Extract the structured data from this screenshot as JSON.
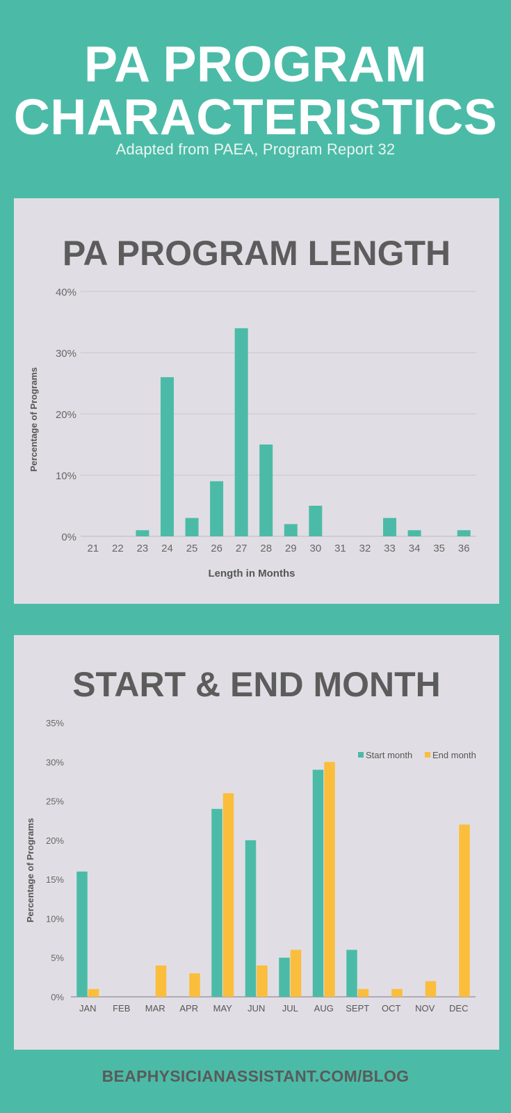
{
  "header": {
    "title_line1": "PA PROGRAM",
    "title_line2": "CHARACTERISTICS",
    "subtitle": "Adapted from PAEA, Program Report 32"
  },
  "footer": {
    "text": "BEAPHYSICIANASSISTANT.COM/BLOG"
  },
  "colors": {
    "teal": "#4bbba7",
    "orange": "#fbbd3c",
    "panel": "#e0dee4"
  },
  "chart_data": [
    {
      "type": "bar",
      "title": "PA PROGRAM LENGTH",
      "xlabel": "Length in Months",
      "ylabel": "Percentage of Programs",
      "categories": [
        "21",
        "22",
        "23",
        "24",
        "25",
        "26",
        "27",
        "28",
        "29",
        "30",
        "31",
        "32",
        "33",
        "34",
        "35",
        "36"
      ],
      "values": [
        0,
        0,
        1,
        26,
        3,
        9,
        34,
        15,
        2,
        5,
        0,
        0,
        3,
        1,
        0,
        1
      ],
      "ylim": [
        0,
        40
      ],
      "yticks": [
        "0%",
        "10%",
        "20%",
        "30%",
        "40%"
      ],
      "grid": true
    },
    {
      "type": "bar",
      "title": "START & END MONTH",
      "xlabel": "",
      "ylabel": "Percentage of Programs",
      "categories": [
        "JAN",
        "FEB",
        "MAR",
        "APR",
        "MAY",
        "JUN",
        "JUL",
        "AUG",
        "SEPT",
        "OCT",
        "NOV",
        "DEC"
      ],
      "series": [
        {
          "name": "Start month",
          "values": [
            16,
            0,
            0,
            0,
            24,
            20,
            5,
            29,
            6,
            0,
            0,
            0
          ]
        },
        {
          "name": "End month",
          "values": [
            1,
            0,
            4,
            3,
            26,
            4,
            6,
            30,
            1,
            1,
            2,
            22
          ]
        }
      ],
      "ylim": [
        0,
        35
      ],
      "yticks": [
        "0%",
        "5%",
        "10%",
        "15%",
        "20%",
        "25%",
        "30%",
        "35%"
      ],
      "grid": false,
      "legend": "top-right"
    }
  ]
}
